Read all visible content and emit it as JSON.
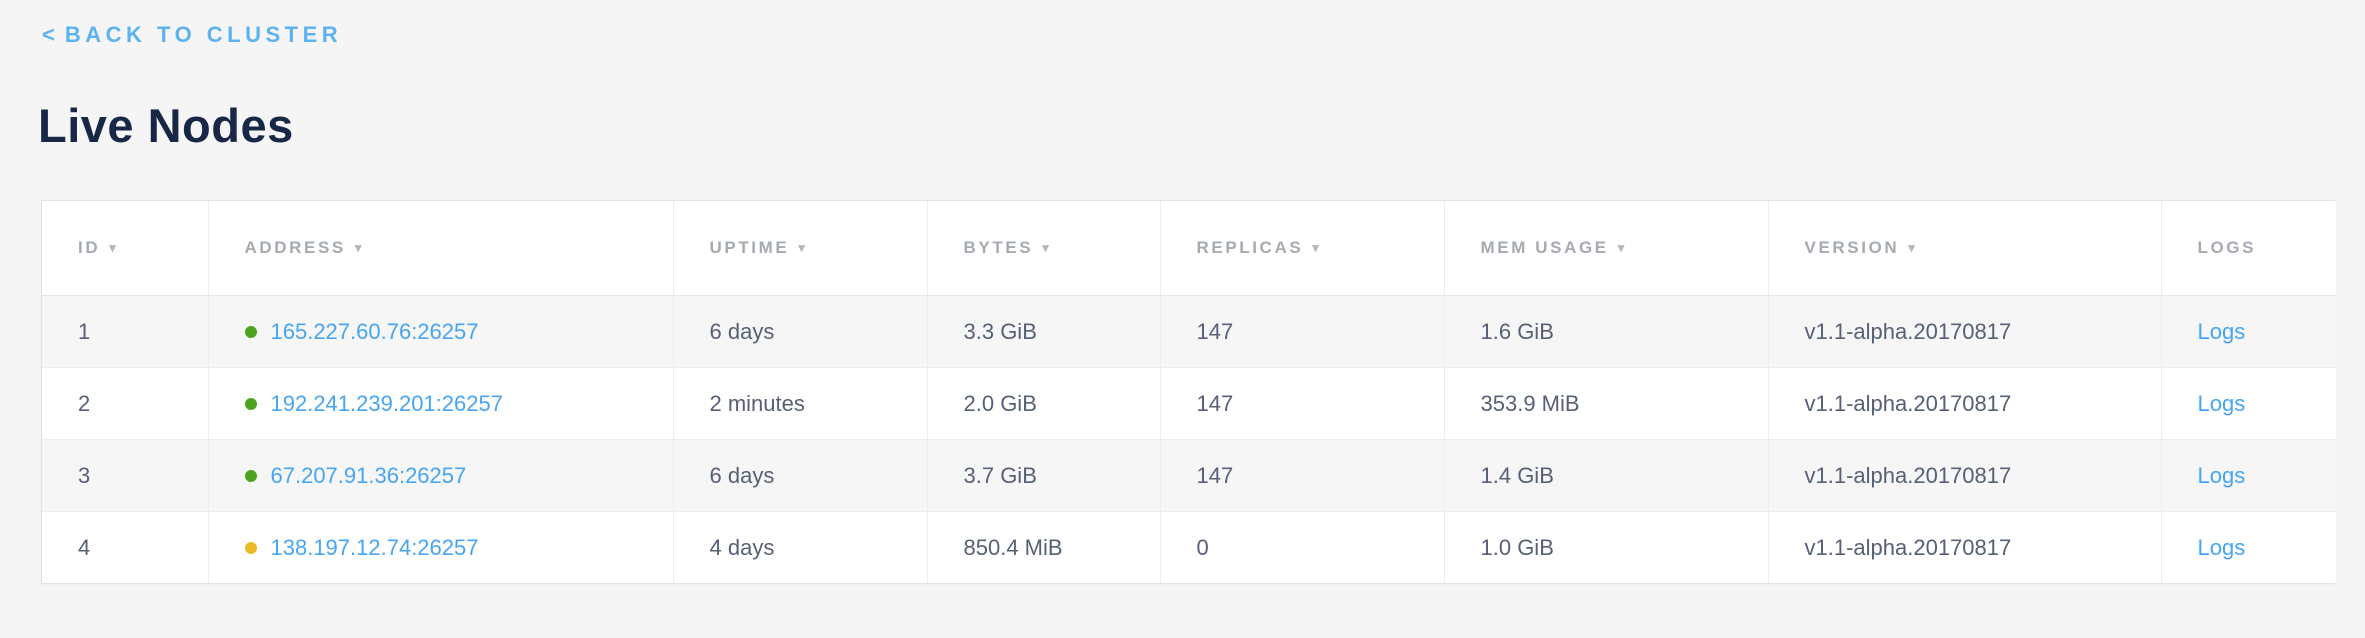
{
  "page": {
    "back_chevron": "<",
    "back_label": "BACK TO CLUSTER",
    "title": "Live Nodes"
  },
  "icons": {
    "sort_indicator": "▾"
  },
  "colors": {
    "page_background": "#f5f5f5",
    "title_navy": "#192747",
    "back_link_blue": "#5db3f2",
    "table_link_blue": "#47a5f2",
    "header_label_gray": "#a5abb1",
    "cell_text_slate": "#566076",
    "healthy_dot_green": "#4ba41f",
    "warning_dot_yellow": "#edba25"
  },
  "table": {
    "columns": [
      {
        "label": "ID",
        "sortable": true
      },
      {
        "label": "ADDRESS",
        "sortable": true
      },
      {
        "label": "UPTIME",
        "sortable": true
      },
      {
        "label": "BYTES",
        "sortable": true
      },
      {
        "label": "REPLICAS",
        "sortable": true
      },
      {
        "label": "MEM USAGE",
        "sortable": true
      },
      {
        "label": "VERSION",
        "sortable": true
      },
      {
        "label": "LOGS",
        "sortable": false
      }
    ],
    "rows": [
      {
        "id": "1",
        "status": "healthy",
        "address": "165.227.60.76:26257",
        "uptime": "6 days",
        "bytes": "3.3 GiB",
        "replicas": "147",
        "mem_usage": "1.6 GiB",
        "version": "v1.1-alpha.20170817",
        "logs_label": "Logs"
      },
      {
        "id": "2",
        "status": "healthy",
        "address": "192.241.239.201:26257",
        "uptime": "2 minutes",
        "bytes": "2.0 GiB",
        "replicas": "147",
        "mem_usage": "353.9 MiB",
        "version": "v1.1-alpha.20170817",
        "logs_label": "Logs"
      },
      {
        "id": "3",
        "status": "healthy",
        "address": "67.207.91.36:26257",
        "uptime": "6 days",
        "bytes": "3.7 GiB",
        "replicas": "147",
        "mem_usage": "1.4 GiB",
        "version": "v1.1-alpha.20170817",
        "logs_label": "Logs"
      },
      {
        "id": "4",
        "status": "warning",
        "address": "138.197.12.74:26257",
        "uptime": "4 days",
        "bytes": "850.4 MiB",
        "replicas": "0",
        "mem_usage": "1.0 GiB",
        "version": "v1.1-alpha.20170817",
        "logs_label": "Logs"
      }
    ]
  }
}
